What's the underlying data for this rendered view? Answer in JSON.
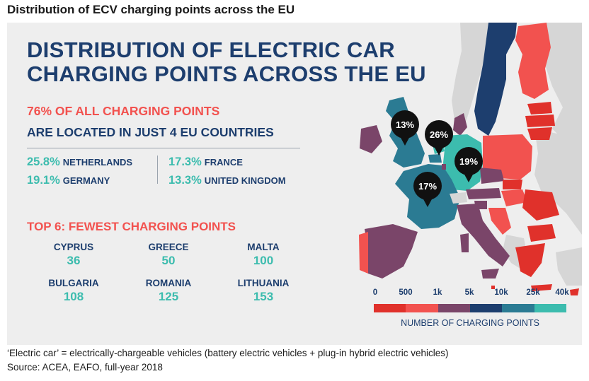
{
  "page_title": "Distribution of ECV charging points across the EU",
  "headline": {
    "line1": "DISTRIBUTION OF ELECTRIC CAR",
    "line2": "CHARGING POINTS ACROSS THE EU"
  },
  "subheadline": {
    "line1": "76% OF ALL CHARGING POINTS",
    "line2": "ARE LOCATED IN JUST 4 EU COUNTRIES"
  },
  "top_countries": [
    {
      "pct": "25.8%",
      "country": "NETHERLANDS"
    },
    {
      "pct": "17.3%",
      "country": "FRANCE"
    },
    {
      "pct": "19.1%",
      "country": "GERMANY"
    },
    {
      "pct": "13.3%",
      "country": "UNITED KINGDOM"
    }
  ],
  "fewest": {
    "title": "TOP 6: FEWEST CHARGING POINTS",
    "items": [
      {
        "country": "CYPRUS",
        "value": "36"
      },
      {
        "country": "GREECE",
        "value": "50"
      },
      {
        "country": "MALTA",
        "value": "100"
      },
      {
        "country": "BULGARIA",
        "value": "108"
      },
      {
        "country": "ROMANIA",
        "value": "125"
      },
      {
        "country": "LITHUANIA",
        "value": "153"
      }
    ]
  },
  "callouts": [
    {
      "label": "13%",
      "country": "United Kingdom"
    },
    {
      "label": "26%",
      "country": "Netherlands"
    },
    {
      "label": "19%",
      "country": "Germany"
    },
    {
      "label": "17%",
      "country": "France"
    }
  ],
  "legend": {
    "ticks": [
      "0",
      "500",
      "1k",
      "5k",
      "10k",
      "25k",
      "40k"
    ],
    "colors": [
      "#e0312b",
      "#f2524f",
      "#7a4569",
      "#1d3e6e",
      "#2b7b93",
      "#3cbcae"
    ],
    "label": "NUMBER OF CHARGING POINTS"
  },
  "map_colors": {
    "non_eu": "#d6d6d6",
    "sea": "#eeeeee",
    "red_dark": "#e0312b",
    "red_light": "#f2524f",
    "purple": "#7a4569",
    "navy": "#1d3e6e",
    "teal_dark": "#2b7b93",
    "teal": "#3cbcae"
  },
  "footnote": "‘Electric car’ = electrically-chargeable vehicles (battery electric vehicles + plug-in hybrid electric vehicles)",
  "source": "Source: ACEA, EAFO, full-year 2018"
}
